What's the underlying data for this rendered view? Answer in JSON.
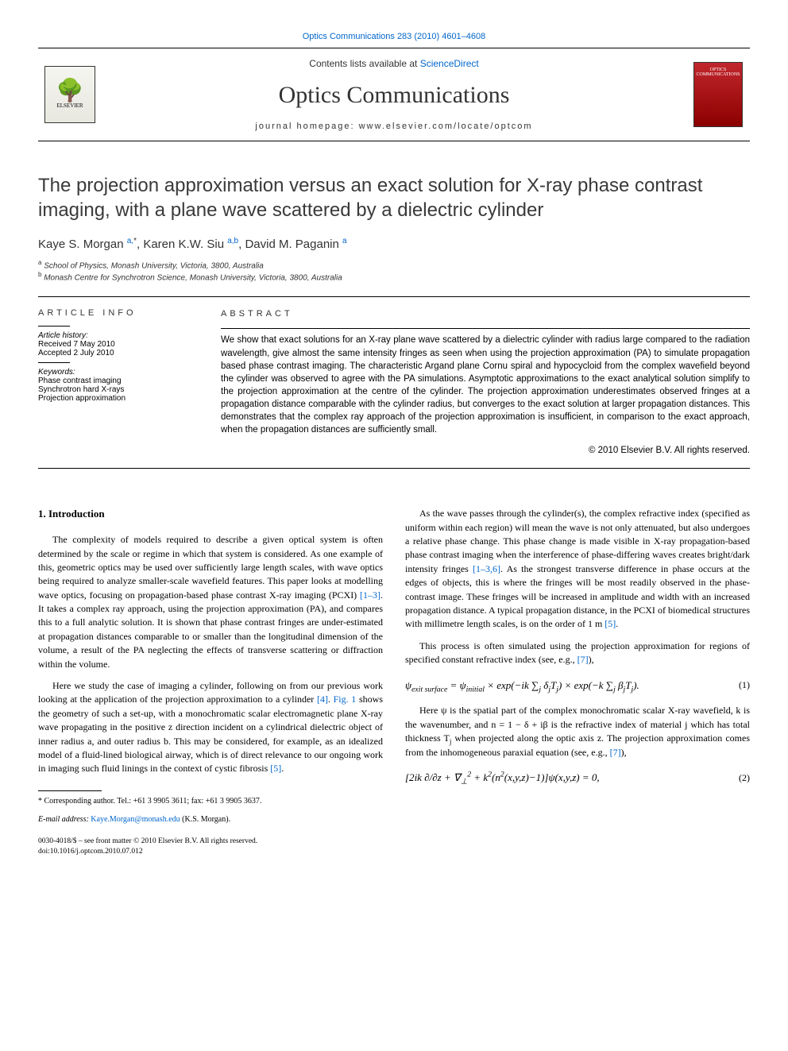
{
  "top_link": "Optics Communications 283 (2010) 4601–4608",
  "header": {
    "contents_prefix": "Contents lists available at ",
    "contents_link": "ScienceDirect",
    "journal_title": "Optics Communications",
    "homepage_prefix": "journal homepage: ",
    "homepage": "www.elsevier.com/locate/optcom",
    "publisher_logo_text": "ELSEVIER",
    "cover_text": "OPTICS COMMUNICATIONS"
  },
  "paper": {
    "title": "The projection approximation versus an exact solution for X-ray phase contrast imaging, with a plane wave scattered by a dielectric cylinder",
    "authors_html": "Kaye S. Morgan <span class='sup'>a,</span><span class='sup star'>*</span>, Karen K.W. Siu <span class='sup'>a,b</span>, David M. Paganin <span class='sup'>a</span>",
    "affiliations": [
      {
        "sup": "a",
        "text": "School of Physics, Monash University, Victoria, 3800, Australia"
      },
      {
        "sup": "b",
        "text": "Monash Centre for Synchrotron Science, Monash University, Victoria, 3800, Australia"
      }
    ]
  },
  "article_info": {
    "head": "ARTICLE INFO",
    "history_label": "Article history:",
    "received": "Received 7 May 2010",
    "accepted": "Accepted 2 July 2010",
    "keywords_label": "Keywords:",
    "keywords": [
      "Phase contrast imaging",
      "Synchrotron hard X-rays",
      "Projection approximation"
    ]
  },
  "abstract": {
    "head": "ABSTRACT",
    "text": "We show that exact solutions for an X-ray plane wave scattered by a dielectric cylinder with radius large compared to the radiation wavelength, give almost the same intensity fringes as seen when using the projection approximation (PA) to simulate propagation based phase contrast imaging. The characteristic Argand plane Cornu spiral and hypocycloid from the complex wavefield beyond the cylinder was observed to agree with the PA simulations. Asymptotic approximations to the exact analytical solution simplify to the projection approximation at the centre of the cylinder. The projection approximation underestimates observed fringes at a propagation distance comparable with the cylinder radius, but converges to the exact solution at larger propagation distances. This demonstrates that the complex ray approach of the projection approximation is insufficient, in comparison to the exact approach, when the propagation distances are sufficiently small.",
    "copyright": "© 2010 Elsevier B.V. All rights reserved."
  },
  "body": {
    "intro_head": "1. Introduction",
    "p1": "The complexity of models required to describe a given optical system is often determined by the scale or regime in which that system is considered. As one example of this, geometric optics may be used over sufficiently large length scales, with wave optics being required to analyze smaller-scale wavefield features. This paper looks at modelling wave optics, focusing on propagation-based phase contrast X-ray imaging (PCXI) ",
    "p1_ref": "[1–3]",
    "p1_cont": ". It takes a complex ray approach, using the projection approximation (PA), and compares this to a full analytic solution. It is shown that phase contrast fringes are under-estimated at propagation distances comparable to or smaller than the longitudinal dimension of the volume, a result of the PA neglecting the effects of transverse scattering or diffraction within the volume.",
    "p2": "Here we study the case of imaging a cylinder, following on from our previous work looking at the application of the projection approximation to a cylinder ",
    "p2_ref1": "[4]",
    "p2_mid": ". ",
    "p2_ref2": "Fig. 1",
    "p2_cont": " shows the geometry of such a set-up, with a monochromatic scalar electromagnetic plane X-ray wave propagating in the positive z direction incident on a cylindrical dielectric object of inner radius a, and outer radius b. This may be considered, for example, as an idealized model of a fluid-lined biological airway, which is of direct relevance to our ongoing work in imaging such fluid linings in the context of cystic fibrosis ",
    "p2_ref3": "[5]",
    "p2_end": ".",
    "p3": "As the wave passes through the cylinder(s), the complex refractive index (specified as uniform within each region) will mean the wave is not only attenuated, but also undergoes a relative phase change. This phase change is made visible in X-ray propagation-based phase contrast imaging when the interference of phase-differing waves creates bright/dark intensity fringes ",
    "p3_ref": "[1–3,6]",
    "p3_cont": ". As the strongest transverse difference in phase occurs at the edges of objects, this is where the fringes will be most readily observed in the phase-contrast image. These fringes will be increased in amplitude and width with an increased propagation distance. A typical propagation distance, in the PCXI of biomedical structures with millimetre length scales, is on the order of 1 m ",
    "p3_ref2": "[5]",
    "p3_end": ".",
    "p4": "This process is often simulated using the projection approximation for regions of specified constant refractive index (see, e.g., ",
    "p4_ref": "[7]",
    "p4_end": "),",
    "eq1": "ψ<sub>exit surface</sub> = ψ<sub>initial</sub> × <i>exp</i>(−<i>ik</i> ∑<sub>j</sub> δ<sub>j</sub>T<sub>j</sub>) × <i>exp</i>(−<i>k</i> ∑<sub>j</sub> β<sub>j</sub>T<sub>j</sub>).",
    "eq1_num": "(1)",
    "p5": "Here ψ is the spatial part of the complex monochromatic scalar X-ray wavefield, k is the wavenumber, and n = 1 − δ + iβ is the refractive index of material j which has total thickness T",
    "p5_sub": "j",
    "p5_cont": " when projected along the optic axis z. The projection approximation comes from the inhomogeneous paraxial equation (see, e.g., ",
    "p5_ref": "[7]",
    "p5_end": "),",
    "eq2": "[2<i>ik</i> ∂/∂z + ∇<sub>⊥</sub><sup>2</sup> + <i>k</i><sup>2</sup>(<i>n</i><sup>2</sup>(<i>x,y,z</i>)−1)]ψ(<i>x,y,z</i>) = 0,",
    "eq2_num": "(2)"
  },
  "footnote": {
    "corresponding": "* Corresponding author. Tel.: +61 3 9905 3611; fax: +61 3 9905 3637.",
    "email_label": "E-mail address:",
    "email": "Kaye.Morgan@monash.edu",
    "email_who": "(K.S. Morgan)."
  },
  "footer": {
    "line1": "0030-4018/$ – see front matter © 2010 Elsevier B.V. All rights reserved.",
    "line2": "doi:10.1016/j.optcom.2010.07.012"
  },
  "colors": {
    "link": "#0066cc",
    "rule": "#000000",
    "text": "#000000",
    "heading": "#3a3a3a",
    "cover_bg": "#c1272d"
  },
  "typography": {
    "title_fontsize": 24,
    "journal_title_fontsize": 30,
    "body_fontsize": 12,
    "abstract_fontsize": 11.5,
    "info_fontsize": 10,
    "footnote_fontsize": 10
  }
}
